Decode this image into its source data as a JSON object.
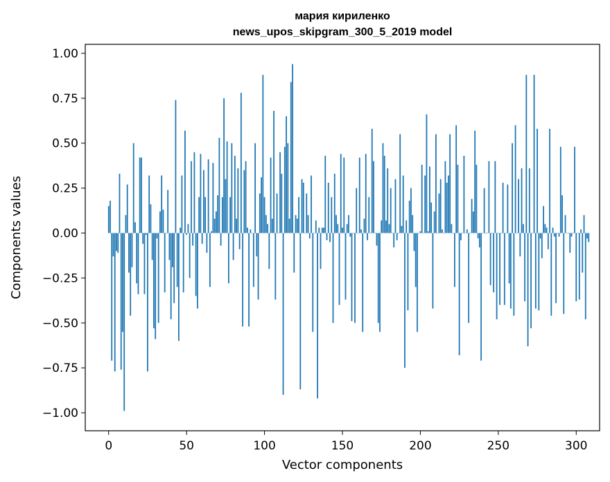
{
  "chart_data": {
    "type": "bar",
    "title_line1": "мария кириленко",
    "title_line2": "news_upos_skipgram_300_5_2019 model",
    "xlabel": "Vector components",
    "ylabel": "Components values",
    "xlim": [
      -15,
      315
    ],
    "ylim": [
      -1.1,
      1.05
    ],
    "xticks": [
      0,
      50,
      100,
      150,
      200,
      250,
      300
    ],
    "xtick_labels": [
      "0",
      "50",
      "100",
      "150",
      "200",
      "250",
      "300"
    ],
    "yticks": [
      1.0,
      0.75,
      0.5,
      0.25,
      0.0,
      -0.25,
      -0.5,
      -0.75,
      -1.0
    ],
    "ytick_labels": [
      "1.00",
      "0.75",
      "0.50",
      "0.25",
      "0.00",
      "−0.25",
      "−0.50",
      "−0.75",
      "−1.00"
    ],
    "bar_color": "#1f77b4",
    "values": [
      0.15,
      0.18,
      -0.71,
      -0.13,
      -0.77,
      -0.1,
      -0.11,
      0.33,
      -0.76,
      -0.55,
      -0.99,
      0.1,
      0.27,
      -0.22,
      -0.46,
      -0.19,
      0.5,
      0.06,
      -0.28,
      -0.34,
      0.42,
      0.42,
      -0.06,
      -0.34,
      -0.01,
      -0.77,
      0.32,
      0.16,
      -0.15,
      -0.53,
      -0.59,
      -0.03,
      -0.5,
      0.12,
      0.32,
      0.13,
      -0.33,
      0.0,
      0.24,
      -0.15,
      -0.48,
      -0.19,
      -0.39,
      0.74,
      -0.3,
      -0.6,
      0.03,
      0.32,
      -0.33,
      0.57,
      -0.01,
      0.05,
      -0.25,
      0.4,
      -0.07,
      0.45,
      -0.35,
      -0.42,
      0.2,
      0.44,
      -0.06,
      0.35,
      0.2,
      -0.11,
      0.41,
      -0.3,
      0.01,
      0.39,
      0.08,
      0.12,
      0.21,
      0.53,
      -0.07,
      0.2,
      0.75,
      0.3,
      0.51,
      -0.28,
      0.2,
      0.5,
      -0.15,
      0.43,
      0.08,
      0.36,
      -0.09,
      0.78,
      -0.52,
      0.35,
      0.4,
      0.03,
      -0.52,
      0.02,
      0.0,
      -0.3,
      0.5,
      -0.13,
      -0.37,
      0.22,
      0.31,
      0.88,
      0.2,
      0.1,
      0.05,
      -0.2,
      0.42,
      0.08,
      0.68,
      -0.37,
      0.22,
      0.0,
      0.45,
      0.33,
      -0.9,
      0.48,
      0.65,
      0.5,
      0.08,
      0.84,
      0.94,
      -0.22,
      0.1,
      0.08,
      0.2,
      -0.87,
      0.3,
      0.28,
      0.0,
      0.22,
      0.1,
      -0.03,
      0.32,
      -0.55,
      0.0,
      0.07,
      -0.92,
      0.03,
      -0.2,
      0.03,
      0.03,
      0.43,
      -0.04,
      0.28,
      -0.05,
      0.2,
      -0.5,
      0.33,
      0.1,
      0.05,
      -0.4,
      0.44,
      0.03,
      0.42,
      -0.37,
      0.05,
      0.1,
      -0.02,
      -0.49,
      0.0,
      -0.5,
      0.25,
      0.0,
      0.42,
      0.02,
      -0.55,
      0.08,
      0.44,
      -0.04,
      0.2,
      0.0,
      0.58,
      0.4,
      0.0,
      -0.07,
      -0.5,
      -0.55,
      0.07,
      0.5,
      0.43,
      0.07,
      0.36,
      0.05,
      0.25,
      0.0,
      -0.08,
      0.3,
      -0.04,
      0.0,
      0.55,
      0.04,
      0.32,
      -0.75,
      0.07,
      -0.43,
      0.18,
      0.25,
      0.1,
      -0.1,
      -0.3,
      -0.55,
      0.0,
      0.01,
      0.38,
      0.0,
      0.32,
      0.66,
      0.01,
      0.37,
      0.17,
      -0.42,
      0.12,
      0.55,
      0.0,
      0.22,
      0.3,
      0.02,
      0.0,
      0.4,
      0.28,
      0.32,
      0.55,
      0.05,
      0.0,
      -0.3,
      0.6,
      0.38,
      -0.68,
      -0.04,
      0.0,
      0.43,
      0.0,
      0.02,
      -0.5,
      0.0,
      0.19,
      0.12,
      0.57,
      0.38,
      -0.03,
      -0.08,
      -0.71,
      0.0,
      0.25,
      0.0,
      0.0,
      0.4,
      -0.29,
      0.0,
      -0.33,
      0.4,
      -0.48,
      0.0,
      -0.4,
      0.0,
      0.28,
      -0.4,
      0.0,
      0.27,
      -0.28,
      -0.42,
      0.5,
      -0.46,
      0.6,
      0.0,
      0.3,
      -0.13,
      0.36,
      0.05,
      -0.38,
      0.88,
      -0.63,
      0.36,
      -0.53,
      0.0,
      0.88,
      -0.42,
      0.58,
      -0.43,
      -0.03,
      -0.14,
      0.15,
      0.05,
      0.03,
      -0.09,
      0.58,
      -0.46,
      0.03,
      -0.02,
      -0.39,
      0.0,
      -0.02,
      0.48,
      0.21,
      -0.45,
      0.1,
      0.0,
      0.0,
      -0.11,
      -0.02,
      0.0,
      0.48,
      -0.38,
      0.0,
      -0.37,
      0.02,
      -0.22,
      0.1,
      -0.48,
      -0.03,
      -0.05
    ]
  }
}
